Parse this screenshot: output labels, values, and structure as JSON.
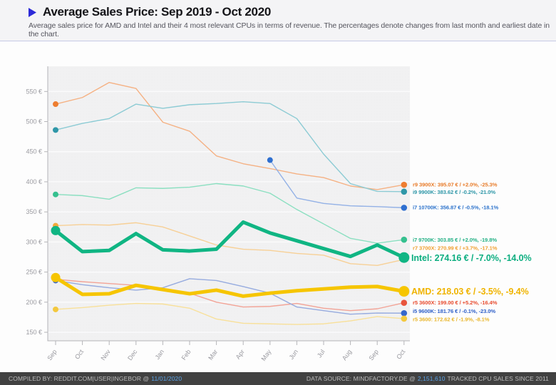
{
  "header": {
    "title": "Average Sales Price: Sep 2019 - Oct 2020",
    "subtitle": "Average sales price for AMD and Intel and their 4 most relevant CPUs in terms of revenue. The percentages denote changes from last month and earliest date in the chart.",
    "bullet_color": "#2d2ad8"
  },
  "footer": {
    "compiled_by_label": "COMPILED BY: REDDIT.COM|USER|INGEBOR @",
    "compiled_date": "11/01/2020",
    "data_source_label": "DATA SOURCE: MINDFACTORY.DE @",
    "sales_count": "2,151,610",
    "data_source_suffix": "TRACKED CPU SALES SINCE 2011",
    "accent_color": "#5aa3e8"
  },
  "chart_data": {
    "type": "line",
    "title": "Average Sales Price: Sep 2019 - Oct 2020",
    "xlabel": "",
    "ylabel": "€",
    "x": [
      "Sep",
      "Oct",
      "Nov",
      "Dec",
      "Jan",
      "Feb",
      "Mar",
      "Apr",
      "May",
      "Jun",
      "Jul",
      "Aug",
      "Sep",
      "Oct"
    ],
    "yticks": [
      150,
      200,
      250,
      300,
      350,
      400,
      450,
      500,
      550
    ],
    "ylim": [
      136,
      592
    ],
    "grid": "horizontal",
    "legend_position": "right-of-lines",
    "series": [
      {
        "id": "r9-3900x",
        "name": "r9 3900X",
        "label": "r9 3900X: 395.07 € / +2.0%, -25.3%",
        "bold": false,
        "color": "#ed7d31",
        "line_color": "#f5b183",
        "label_color": "#e87c2a",
        "label_y": 200,
        "values": [
          529,
          540,
          565,
          555,
          499,
          484,
          443,
          430,
          422,
          413,
          407,
          393,
          387,
          395.07
        ]
      },
      {
        "id": "i9-9900k",
        "name": "i9 9900K",
        "label": "i9 9900K: 383.62 € / -0.2%, -21.0%",
        "bold": false,
        "color": "#2f97a8",
        "line_color": "#8ccbd4",
        "label_color": "#2f97a8",
        "label_y": 210.5,
        "values": [
          486,
          497,
          505,
          529,
          522,
          528,
          530,
          533,
          530,
          505,
          446,
          397,
          384,
          383.62
        ]
      },
      {
        "id": "i7-10700k",
        "name": "i7 10700K",
        "label": "i7 10700K: 356.87 € / -0.5%, -18.1%",
        "bold": false,
        "color": "#2e6fd0",
        "line_color": "#93b1e6",
        "label_color": "#2e74cc",
        "label_y": 232,
        "values": [
          null,
          null,
          null,
          null,
          null,
          null,
          null,
          null,
          436,
          373,
          364,
          360,
          358.7,
          356.87
        ]
      },
      {
        "id": "i7-9700k",
        "name": "i7 9700K",
        "label": "i7 9700K: 303.85 € / +2.0%, -19.8%",
        "bold": false,
        "color": "#35c08f",
        "line_color": "#8adfc0",
        "label_color": "#27b287",
        "label_y": 277.5,
        "values": [
          379,
          377,
          371,
          390,
          389,
          391,
          397,
          393,
          381,
          354,
          330,
          306,
          298,
          303.85
        ]
      },
      {
        "id": "r7-3700x",
        "name": "r7 3700X",
        "label": "r7 3700X: 270.99 € / +3.7%, -17.1%",
        "bold": false,
        "color": "#f2a93c",
        "line_color": "#f7d096",
        "label_color": "#f0a132",
        "label_y": 289,
        "values": [
          327,
          329,
          328,
          332,
          325,
          310,
          295,
          288,
          286,
          281,
          278,
          264,
          261,
          270.99
        ]
      },
      {
        "id": "r5-3600x",
        "name": "r5 3600X",
        "label": "r5 3600X: 199.00 € / +5.2%, -16.4%",
        "bold": false,
        "color": "#e8543c",
        "line_color": "#f2a396",
        "label_color": "#e84c30",
        "label_y": 365.5,
        "values": [
          238,
          234,
          231,
          228,
          221,
          215,
          200,
          192,
          193,
          198,
          190,
          186,
          189,
          199.0
        ]
      },
      {
        "id": "i5-9600k",
        "name": "i5 9600K",
        "label": "i5 9600K: 181.76 € / -0.1%, -23.0%",
        "bold": false,
        "color": "#3566cc",
        "line_color": "#96abdf",
        "label_color": "#2e5fc8",
        "label_y": 377.5,
        "values": [
          236,
          229,
          224,
          220,
          224,
          239,
          236,
          226,
          215,
          192,
          186,
          180,
          182,
          181.76
        ]
      },
      {
        "id": "r5-3600",
        "name": "r5 3600",
        "label": "r5 3600: 172.62 € / -1.9%, -8.1%",
        "bold": false,
        "color": "#f3c83e",
        "line_color": "#f8e099",
        "label_color": "#e9b62e",
        "label_y": 389,
        "values": [
          188,
          191,
          195,
          198,
          197,
          190,
          172,
          165,
          164,
          163,
          164,
          169,
          176,
          172.62
        ]
      },
      {
        "id": "intel",
        "name": "Intel",
        "label": "Intel: 274.16 € / -7.0%, -14.0%",
        "bold": true,
        "color": "#10b583",
        "line_color": "#10b583",
        "label_color": "#0cae80",
        "label_y": 302.5,
        "values": [
          319,
          284,
          286,
          314,
          287,
          285,
          288,
          333,
          315,
          302,
          289,
          276,
          295,
          274.16
        ]
      },
      {
        "id": "amd",
        "name": "AMD",
        "label": "AMD: 218.03 € / -3.5%, -9.4%",
        "bold": true,
        "color": "#f6c500",
        "line_color": "#f6c500",
        "label_color": "#f0b400",
        "label_y": 349.5,
        "values": [
          241,
          213,
          214,
          228,
          221,
          214,
          220,
          210,
          215,
          219,
          222,
          225,
          226,
          218.03
        ]
      }
    ],
    "axis_color": "#b4b4b8",
    "tick_label_color": "#9a9aa0",
    "plot_bg": "#f1f1f2",
    "grid_color": "#fbfbfc"
  }
}
